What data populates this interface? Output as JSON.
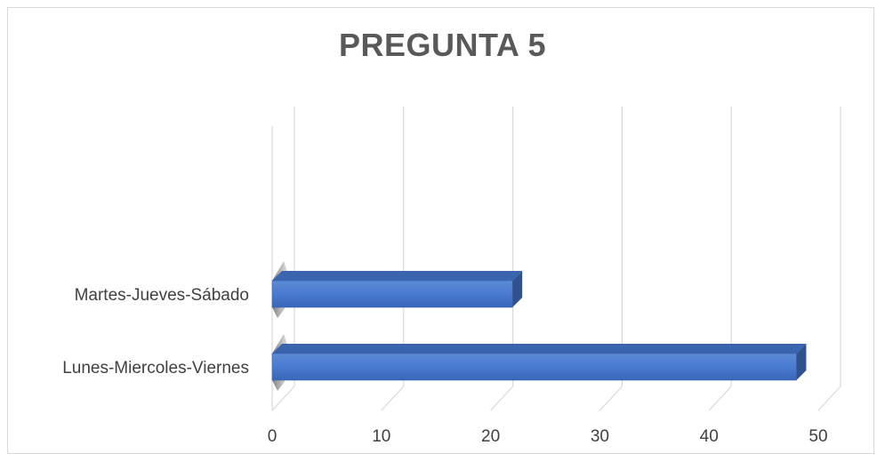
{
  "chart_data": {
    "type": "bar",
    "orientation": "horizontal",
    "style": "3d",
    "title": "PREGUNTA 5",
    "categories": [
      "Lunes-Miercoles-Viernes",
      "Martes-Jueves-Sábado"
    ],
    "values": [
      48,
      22
    ],
    "xlim": [
      0,
      50
    ],
    "xticks": [
      0,
      10,
      20,
      30,
      40,
      50
    ],
    "xlabel": "",
    "ylabel": "",
    "grid": true,
    "legend": "none",
    "colors": {
      "bar_front": "#4472c4",
      "bar_top": "#3a64ad",
      "bar_side": "#2f528f",
      "gridline": "#d9d9d9",
      "text": "#404040",
      "title": "#595959"
    }
  }
}
